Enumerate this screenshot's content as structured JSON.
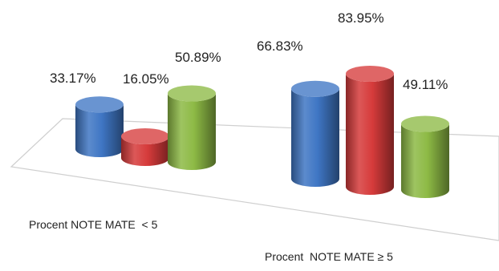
{
  "chart_data": {
    "type": "bar",
    "style": "3d-cylinder",
    "categories": [
      "Procent NOTE MATE  < 5",
      "Procent  NOTE MATE ≥ 5"
    ],
    "series": [
      {
        "values": [
          33.17,
          66.83
        ],
        "color": "#3f76c4"
      },
      {
        "values": [
          16.05,
          83.95
        ],
        "color": "#d63b3b"
      },
      {
        "values": [
          50.89,
          49.11
        ],
        "color": "#8dba45"
      }
    ],
    "value_labels": [
      [
        "33.17%",
        "16.05%",
        "50.89%"
      ],
      [
        "66.83%",
        "83.95%",
        "49.11%"
      ]
    ],
    "unit": "%",
    "title": "",
    "xlabel": "",
    "ylabel": "",
    "ylim": [
      0,
      100
    ],
    "grid": false,
    "legend": "none"
  }
}
